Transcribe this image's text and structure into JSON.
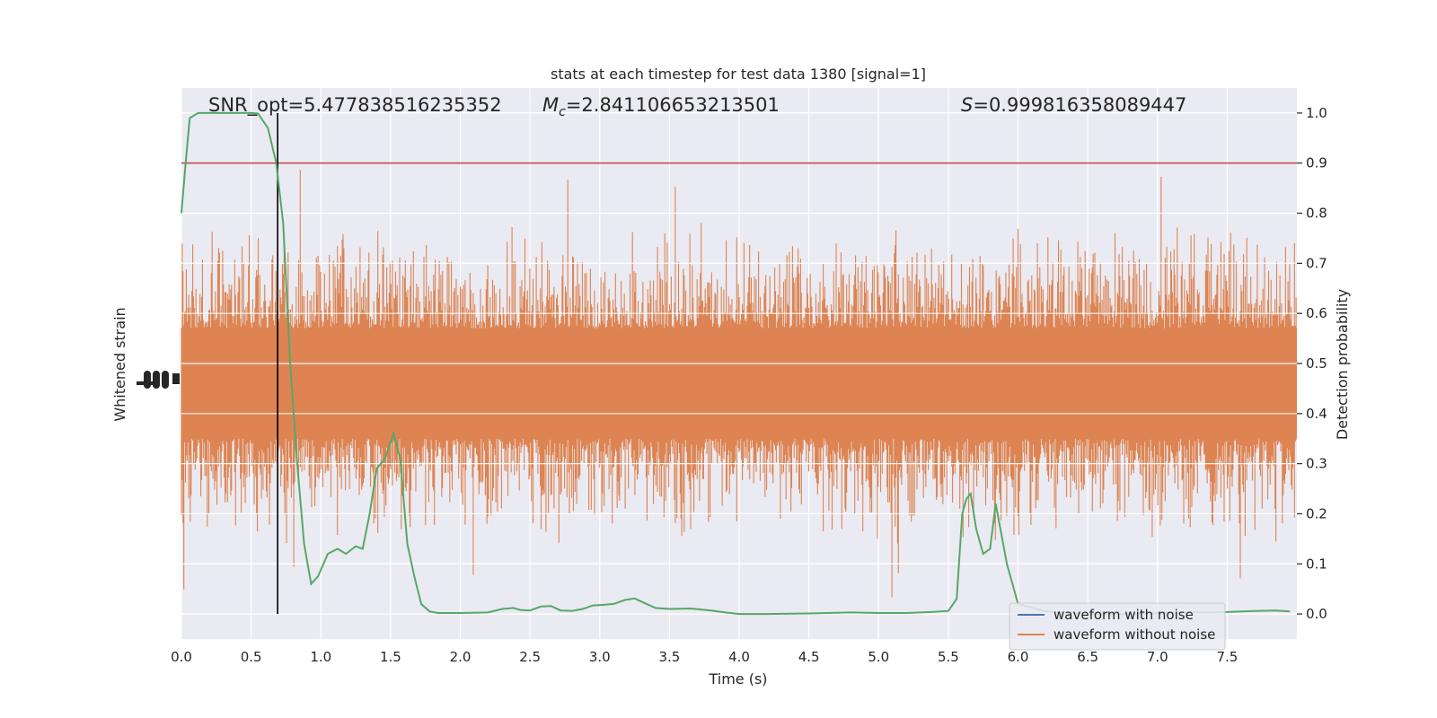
{
  "chart_data": {
    "type": "line",
    "title": "stats at each timestep for test data 1380 [signal=1]",
    "annotations": {
      "snr": "SNR_opt=5.477838516235352",
      "mc_label": "M",
      "mc_sub": "c",
      "mc_value": "=2.841106653213501",
      "s_label": "S",
      "s_value": "=0.999816358089447"
    },
    "xlabel": "Time (s)",
    "ylabel_left": "Whitened strain",
    "ylabel_right": "Detection probability",
    "xlim": [
      0,
      8
    ],
    "ylim_right": [
      -0.05,
      1.05
    ],
    "x_ticks": [
      0.0,
      0.5,
      1.0,
      1.5,
      2.0,
      2.5,
      3.0,
      3.5,
      4.0,
      4.5,
      5.0,
      5.5,
      6.0,
      6.5,
      7.0,
      7.5
    ],
    "x_tick_labels": [
      "0.0",
      "0.5",
      "1.0",
      "1.5",
      "2.0",
      "2.5",
      "3.0",
      "3.5",
      "4.0",
      "4.5",
      "5.0",
      "5.5",
      "6.0",
      "6.5",
      "7.0",
      "7.5"
    ],
    "y_ticks_right": [
      0.0,
      0.1,
      0.2,
      0.3,
      0.4,
      0.5,
      0.6,
      0.7,
      0.8,
      0.9,
      1.0
    ],
    "y_tick_labels_right": [
      "0.0",
      "0.1",
      "0.2",
      "0.3",
      "0.4",
      "0.5",
      "0.6",
      "0.7",
      "0.8",
      "0.9",
      "1.0"
    ],
    "grid": true,
    "threshold": {
      "value": 0.9,
      "color": "#c44e52"
    },
    "detection_marker_time": 0.69,
    "legend": {
      "placement": "lower-right",
      "entries": [
        {
          "label": "waveform with noise",
          "color": "#4c72b0"
        },
        {
          "label": "waveform without noise",
          "color": "#dd8452"
        }
      ]
    },
    "noise_series": {
      "name": "waveform without noise",
      "color": "#dd8452",
      "center": 0.46,
      "core_half_width": 0.11,
      "spread": 0.1,
      "max_excursion": 0.43
    },
    "probability_series": {
      "color": "#55a868",
      "x": [
        0.0,
        0.03,
        0.06,
        0.12,
        0.2,
        0.3,
        0.4,
        0.5,
        0.55,
        0.62,
        0.68,
        0.73,
        0.78,
        0.83,
        0.88,
        0.93,
        0.98,
        1.05,
        1.12,
        1.18,
        1.25,
        1.3,
        1.35,
        1.4,
        1.46,
        1.52,
        1.57,
        1.62,
        1.67,
        1.72,
        1.78,
        1.84,
        1.9,
        2.0,
        2.2,
        2.3,
        2.38,
        2.43,
        2.5,
        2.58,
        2.65,
        2.72,
        2.8,
        2.88,
        2.95,
        3.02,
        3.1,
        3.18,
        3.25,
        3.32,
        3.4,
        3.5,
        3.65,
        3.8,
        3.9,
        4.0,
        4.2,
        4.5,
        4.8,
        5.0,
        5.2,
        5.38,
        5.5,
        5.56,
        5.6,
        5.63,
        5.66,
        5.7,
        5.75,
        5.8,
        5.84,
        5.88,
        5.92,
        5.96,
        6.0,
        6.2,
        6.5,
        6.8,
        7.0,
        7.3,
        7.5,
        7.7,
        7.85,
        7.95
      ],
      "y": [
        0.8,
        0.9,
        0.99,
        1.0,
        1.0,
        1.0,
        1.0,
        1.0,
        0.999,
        0.97,
        0.9,
        0.78,
        0.5,
        0.3,
        0.14,
        0.06,
        0.075,
        0.12,
        0.13,
        0.12,
        0.135,
        0.13,
        0.2,
        0.29,
        0.31,
        0.36,
        0.31,
        0.14,
        0.075,
        0.02,
        0.005,
        0.002,
        0.002,
        0.002,
        0.003,
        0.01,
        0.012,
        0.008,
        0.007,
        0.015,
        0.016,
        0.007,
        0.006,
        0.01,
        0.017,
        0.018,
        0.02,
        0.028,
        0.031,
        0.022,
        0.012,
        0.01,
        0.011,
        0.007,
        0.003,
        0.0,
        0.0,
        0.001,
        0.003,
        0.002,
        0.002,
        0.004,
        0.006,
        0.03,
        0.2,
        0.23,
        0.24,
        0.17,
        0.12,
        0.13,
        0.22,
        0.16,
        0.1,
        0.06,
        0.02,
        0.005,
        0.0,
        0.0,
        0.002,
        0.003,
        0.004,
        0.006,
        0.007,
        0.005
      ]
    }
  }
}
